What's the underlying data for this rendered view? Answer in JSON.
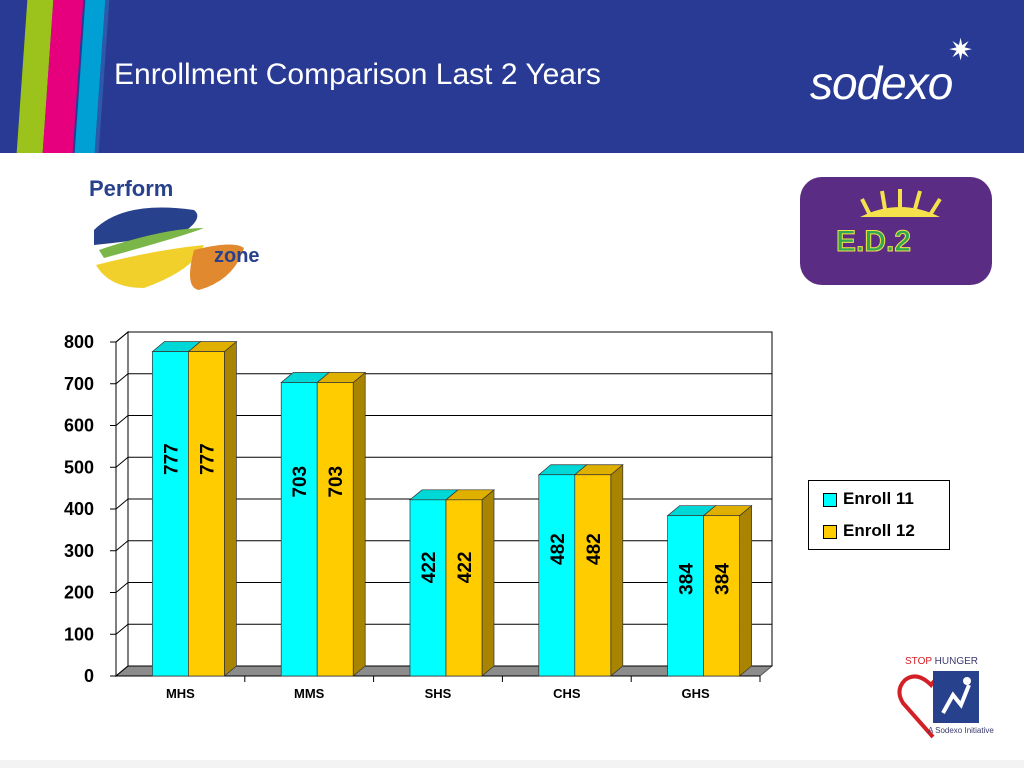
{
  "header": {
    "title": "Enrollment Comparison Last 2 Years",
    "brand": "sodexo",
    "background_color": "#283A93",
    "stripe_colors": [
      "#9CC31B",
      "#E6007E",
      "#009FD4",
      "#2C5AA8"
    ]
  },
  "logos": {
    "performance_zone": "performance zone",
    "ed2": "E.D.2",
    "stop_hunger_prefix": "STOP",
    "stop_hunger_suffix": "HUNGER",
    "stop_hunger_sub": "A Sodexo Initiative"
  },
  "chart_data": {
    "type": "bar",
    "style": "3d-clustered",
    "categories": [
      "MHS",
      "MMS",
      "SHS",
      "CHS",
      "GHS"
    ],
    "series": [
      {
        "name": "Enroll 11",
        "values": [
          777,
          703,
          422,
          482,
          384
        ],
        "color": "#00FFFF"
      },
      {
        "name": "Enroll 12",
        "values": [
          777,
          703,
          422,
          482,
          384
        ],
        "color": "#FFCC00"
      }
    ],
    "ylim": [
      0,
      800
    ],
    "yticks": [
      0,
      100,
      200,
      300,
      400,
      500,
      600,
      700,
      800
    ],
    "grid": true,
    "legend_position": "right",
    "data_labels": "inside-rotated"
  }
}
